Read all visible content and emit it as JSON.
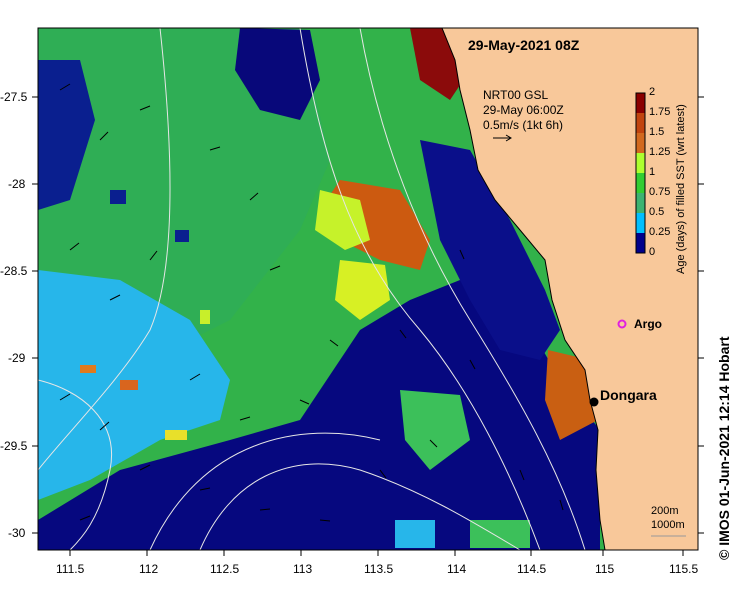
{
  "map": {
    "title": "29-May-2021 08Z",
    "legend": {
      "product": "NRT00 GSL",
      "time": "29-May 06:00Z",
      "scale": "0.5m/s (1kt 6h)"
    },
    "colorbar": {
      "title": "Age (days) of filled SST (wrt latest)",
      "ticks": [
        "2",
        "1.75",
        "1.5",
        "1.25",
        "1",
        "0.75",
        "0.5",
        "0.25",
        "0"
      ],
      "colors": [
        "#8b0000",
        "#c1440e",
        "#d2691e",
        "#adff2f",
        "#32cd32",
        "#3cb371",
        "#00bfff",
        "#1e90ff",
        "#00008b"
      ]
    },
    "x_ticks": [
      "111.5",
      "112",
      "112.5",
      "113",
      "113.5",
      "114",
      "114.5",
      "115",
      "115.5"
    ],
    "y_ticks": [
      "-27.5",
      "-28",
      "-28.5",
      "-29",
      "-29.5",
      "-30"
    ],
    "places": {
      "argo": "Argo",
      "town": "Dongara"
    },
    "isobaths": {
      "shallow": "200m",
      "deep": "1000m"
    },
    "credit": "© IMOS 01-Jun-2021 12:14 Hobart",
    "land_color": "#f8c89a"
  }
}
